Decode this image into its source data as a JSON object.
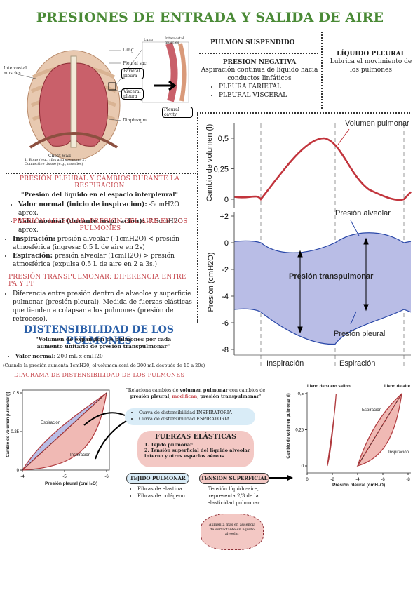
{
  "title": "PRESIONES DE ENTRADA Y SALIDA DE AIRE",
  "anatomy": {
    "lung": "Lung",
    "pleural_sac": "Pleural sac",
    "parietal_pleura": "Parietal pleura",
    "visceral_pleura": "Visceral pleura",
    "pleural_cavity": "Pleural cavity",
    "diaphragm": "Diaphragm",
    "intercostal_muscles": "Intercostal muscles",
    "chest_wall": "Chest wall",
    "chest_wall_detail": "1. Bone (e.g., ribs and sternum) 2. Connective tissue (e.g., muscles)",
    "lung_small": "Lung",
    "intercostal_small": "Intercostal muscles"
  },
  "pulmon_suspendido": "PULMON SUSPENDIDO",
  "presion_negativa": {
    "heading": "PRESION NEGATIVA",
    "text": "Aspiración continua de líquido hacia conductos linfáticos",
    "items": [
      "PLEURA PARIETAL",
      "PLEURAL VISCERAL"
    ]
  },
  "liquido_pleural": {
    "heading": "LÍQUIDO PLEURAL",
    "text": "Lubrica el movimiento de los pulmones"
  },
  "pleural_section": {
    "heading": "PRESIÓN PLEURAL Y CAMBIOS DURANTE LA RESPIRACION",
    "subtitle": "\"Presión del líquido en el espacio interpleural\"",
    "items": [
      {
        "label": "Valor normal (inicio de inspiración):",
        "value": " -5cmH2O aprox."
      },
      {
        "label": "Valor normal (durante inspiración):",
        "value": " -7.5cmH2O aprox."
      }
    ]
  },
  "alveolar_section": {
    "heading": "PRESIÓN ALVEOLAR: PRESIÓN DEL AIRE EN LOS PULMONES",
    "items": [
      {
        "label": "Inspiración:",
        "value": " presión alveolar (-1cmH2O) < presión atmosférica (ingresa: 0.5 L de aire en 2s)"
      },
      {
        "label": "Espiración:",
        "value": " presión alveolar (1cmH2O) > presión atmosférica (expulsa 0.5 L de aire en 2 a 3s.)"
      }
    ]
  },
  "transpulmonar_section": {
    "heading": "PRESIÓN TRANSPULMONAR: DIFERENCIA ENTRE PA Y PP",
    "item": "Diferencia entre presión dentro de alveolos y superficie pulmonar (presión pleural). Medida de fuerzas elásticas que tienden a colapsar a los pulmones (presión de retroceso)."
  },
  "distensibilidad": {
    "heading": "DISTENSIBILIDAD DE LOS PULMONES",
    "subtitle": "\"Volumen de expansión de pulmones por cada aumento unitario de presión transpulmonar\"",
    "item_label": "Valor normal:",
    "item_value": " 200 mL x cmH20",
    "note": "(Cuando la presión aumenta 1cmH20, el volumen será de 200 mL después de 10 a 20s)",
    "diagram_heading": "DIAGRAMA DE DISTENSIBILIDAD DE LOS PULMONES"
  },
  "relaciona": {
    "pre": "\"Relaciona cambios de ",
    "b1": "volumen pulmonar",
    "mid": " con cambios de ",
    "b2": "presión pleural",
    "comma": ", ",
    "red": "modifican",
    "mid2": ", ",
    "b3": "presión transpulmonar",
    "end": "\""
  },
  "curvas": {
    "items": [
      "Curva de distensibilidad INSPIRATORIA",
      "Curva de distensibilidad ESPIRATORIA"
    ]
  },
  "fuerzas": {
    "heading": "FUERZAS ELÁSTICAS",
    "items": [
      "1. Tejido pulmonar",
      "2. Tensión superficial del líquido alveolar interno y otros espacios aéreos"
    ]
  },
  "tejido": {
    "heading": "TEJIDO PULMONAR",
    "items": [
      "Fibras de elastina",
      "Fibras de colágeno"
    ]
  },
  "tension": {
    "heading": "TENSION SUPERFICIAL",
    "text": "Tensión líquido-aire, representa 2/3 de la elasticidad pulmonar"
  },
  "cloud": "Aumenta más en ausencia de surfactante en líquido alveolar",
  "big_chart": {
    "top_ylabel": "Cambio de volumen (l)",
    "bottom_ylabel": "Presión (cmH2O)",
    "top_ticks": [
      "0,5",
      "0,25",
      "0"
    ],
    "bottom_ticks": [
      "+2",
      "0",
      "-2",
      "-4",
      "-6",
      "-8"
    ],
    "volumen_label": "Volumen pulmonar",
    "alveolar_label": "Presión alveolar",
    "transpulmonar_label": "Presión transpulmonar",
    "pleural_label": "Presión pleural",
    "inspiracion": "Inspiración",
    "espiracion": "Espiración"
  },
  "chart_data": [
    {
      "type": "line",
      "title": "",
      "xlabel": "",
      "ylabel": "Cambio de volumen (l)",
      "ylim": [
        0,
        0.5
      ],
      "series": [
        {
          "name": "Volumen pulmonar",
          "x": [
            0,
            1,
            2,
            3,
            4
          ],
          "values": [
            0.0,
            0.25,
            0.5,
            0.2,
            0.0
          ]
        }
      ]
    },
    {
      "type": "line",
      "title": "",
      "xlabel": "",
      "ylabel": "Presión (cmH2O)",
      "ylim": [
        -8,
        2
      ],
      "series": [
        {
          "name": "Presión alveolar",
          "x": [
            0,
            1,
            2,
            3,
            4
          ],
          "values": [
            0,
            -1,
            0,
            1,
            0
          ]
        },
        {
          "name": "Presión pleural",
          "x": [
            0,
            1,
            2,
            3,
            4
          ],
          "values": [
            -5,
            -6.5,
            -7.5,
            -6,
            -5
          ]
        }
      ]
    },
    {
      "type": "area",
      "title": "",
      "xlabel": "Presión pleural (cmH₂O)",
      "ylabel": "Cambio de volumen pulmonar (l)",
      "xlim": [
        -4,
        -6
      ],
      "ylim": [
        0,
        0.5
      ],
      "series": [
        {
          "name": "Espiración",
          "x": [
            -4,
            -4.8,
            -5.5,
            -6
          ],
          "values": [
            0,
            0.2,
            0.38,
            0.5
          ]
        },
        {
          "name": "Inspiración",
          "x": [
            -4,
            -5.2,
            -5.8,
            -6
          ],
          "values": [
            0,
            0.05,
            0.2,
            0.5
          ]
        }
      ]
    },
    {
      "type": "area",
      "title": "",
      "xlabel": "Presión pleural (cmH₂O)",
      "ylabel": "Cambio de volumen pulmonar (l)",
      "xlim": [
        0,
        -8
      ],
      "ylim": [
        0,
        0.5
      ],
      "series": [
        {
          "name": "Lleno de suero salino",
          "x": [
            -1.8,
            -2.2
          ],
          "values": [
            0,
            0.5
          ]
        },
        {
          "name": "Lleno de aire",
          "x": [
            -4,
            -7.5
          ],
          "values": [
            0,
            0.5
          ]
        }
      ]
    }
  ],
  "small_charts": {
    "left": {
      "xticks": [
        "-4",
        "-5",
        "-6"
      ],
      "yticks": [
        "0.5",
        "0.25",
        "0"
      ],
      "xlabel": "Presión pleural (cmH₂O)",
      "ylabel": "Cambio de volumen pulmonar (l)",
      "esp": "Espiración",
      "insp": "Inspiración"
    },
    "right": {
      "xticks": [
        "0",
        "-2",
        "-4",
        "-6",
        "-8"
      ],
      "yticks": [
        "0,5",
        "0,25",
        "0"
      ],
      "xlabel": "Presión pleural (cmH₂O)",
      "ylabel": "Cambio de volumen pulmonar (l)",
      "saline": "Lleno de suero salino",
      "air": "Lleno de aire",
      "esp": "Espiración",
      "insp": "Inspiración"
    }
  },
  "colors": {
    "green": "#4a8a36",
    "red": "#c6474d",
    "blue_fill": "#b9bde6",
    "pink_fill": "#f0b9b4",
    "dark_red": "#b03a3e"
  }
}
